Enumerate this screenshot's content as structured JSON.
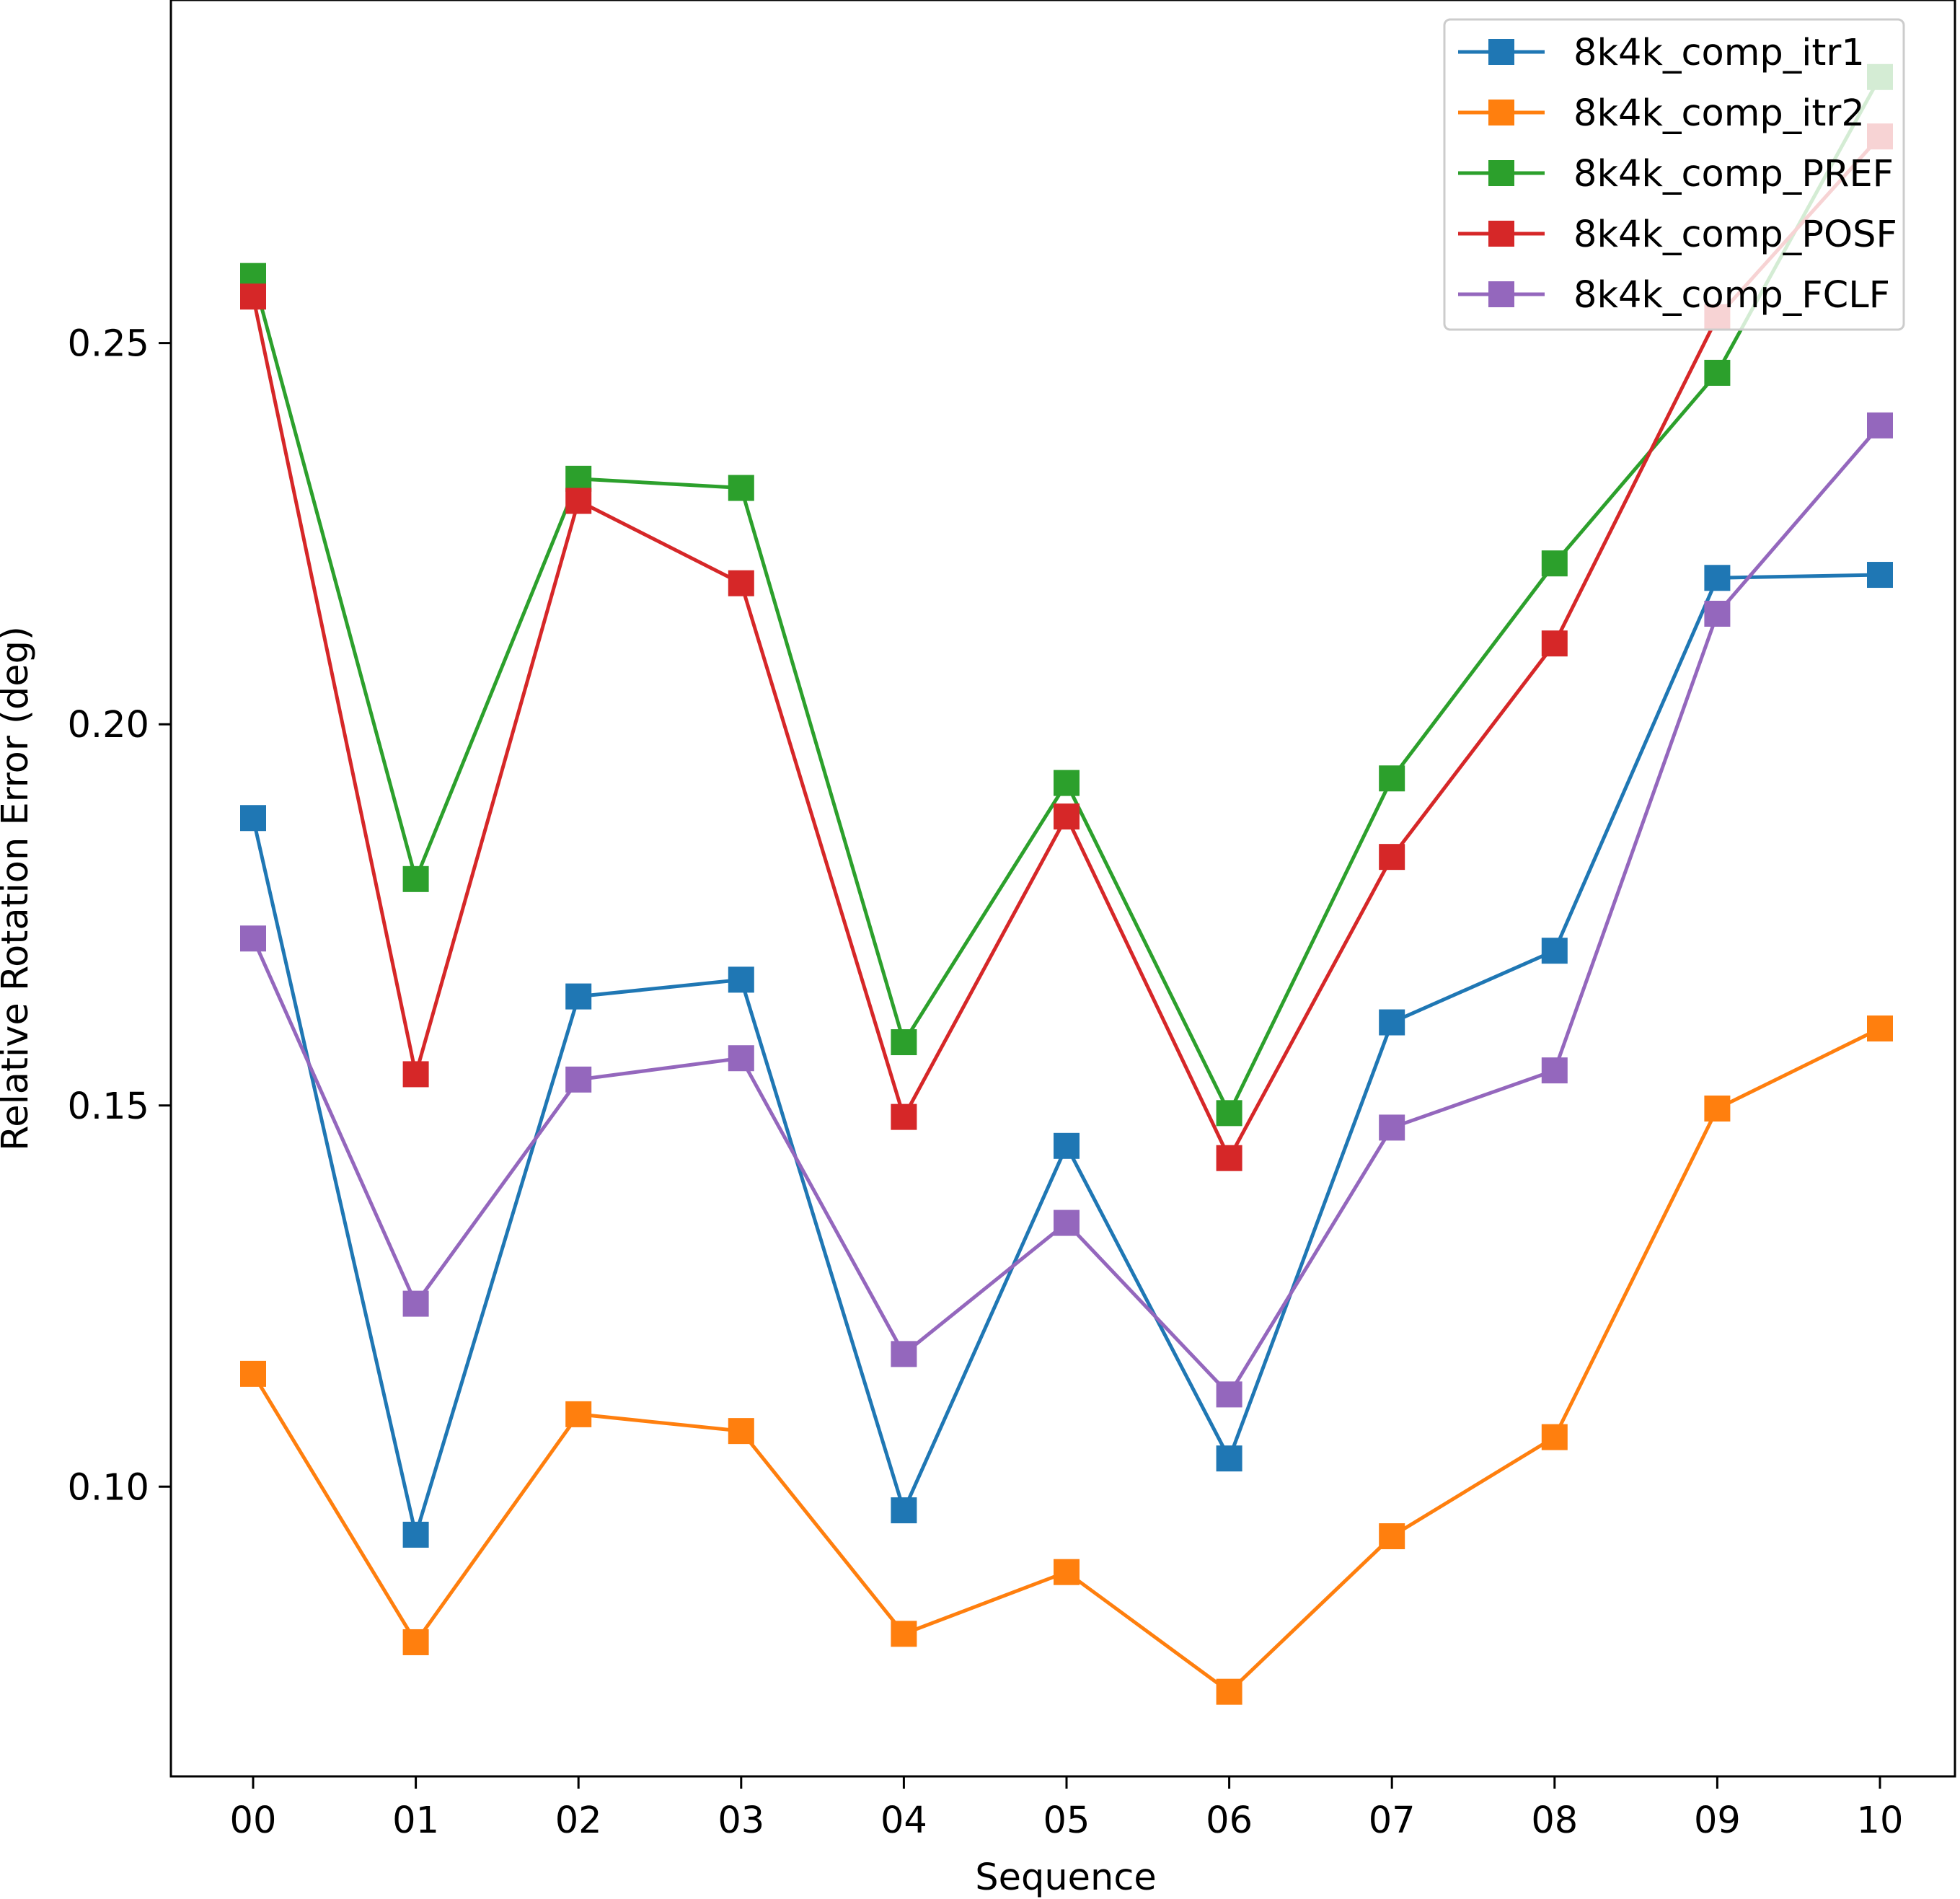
{
  "chart_data": {
    "type": "line",
    "title": "",
    "xlabel": "Sequence",
    "ylabel": "Relative Rotation Error (deg)",
    "categories": [
      "00",
      "01",
      "02",
      "03",
      "04",
      "05",
      "06",
      "07",
      "08",
      "09",
      "10"
    ],
    "ylim": [
      0.062,
      0.295
    ],
    "yticks": [
      0.1,
      0.15,
      0.2,
      0.25
    ],
    "ytick_labels": [
      "0.10",
      "0.15",
      "0.20",
      "0.25"
    ],
    "grid": false,
    "legend_position": "top-right",
    "marker": "square",
    "series": [
      {
        "name": "8k4k_comp_itr1",
        "color": "#1f77b4",
        "values": [
          0.1877,
          0.0937,
          0.1643,
          0.1665,
          0.0969,
          0.1447,
          0.1037,
          0.1609,
          0.1703,
          0.2192,
          0.2196
        ]
      },
      {
        "name": "8k4k_comp_itr2",
        "color": "#ff7f0e",
        "values": [
          0.1148,
          0.0796,
          0.1095,
          0.1073,
          0.0807,
          0.0888,
          0.0731,
          0.0935,
          0.1065,
          0.1496,
          0.1601
        ]
      },
      {
        "name": "8k4k_comp_PREF",
        "color": "#2ca02c",
        "values": [
          0.2588,
          0.1797,
          0.2322,
          0.231,
          0.1583,
          0.1923,
          0.149,
          0.1929,
          0.2211,
          0.2461,
          0.2849
        ]
      },
      {
        "name": "8k4k_comp_POSF",
        "color": "#d62728",
        "values": [
          0.2561,
          0.1541,
          0.2293,
          0.2185,
          0.1485,
          0.1879,
          0.1431,
          0.1826,
          0.2106,
          0.2534,
          0.2771
        ]
      },
      {
        "name": "8k4k_comp_FCLF",
        "color": "#9467bd",
        "values": [
          0.1719,
          0.124,
          0.1534,
          0.1562,
          0.1174,
          0.1346,
          0.1121,
          0.1471,
          0.1546,
          0.2145,
          0.2392
        ]
      }
    ]
  }
}
